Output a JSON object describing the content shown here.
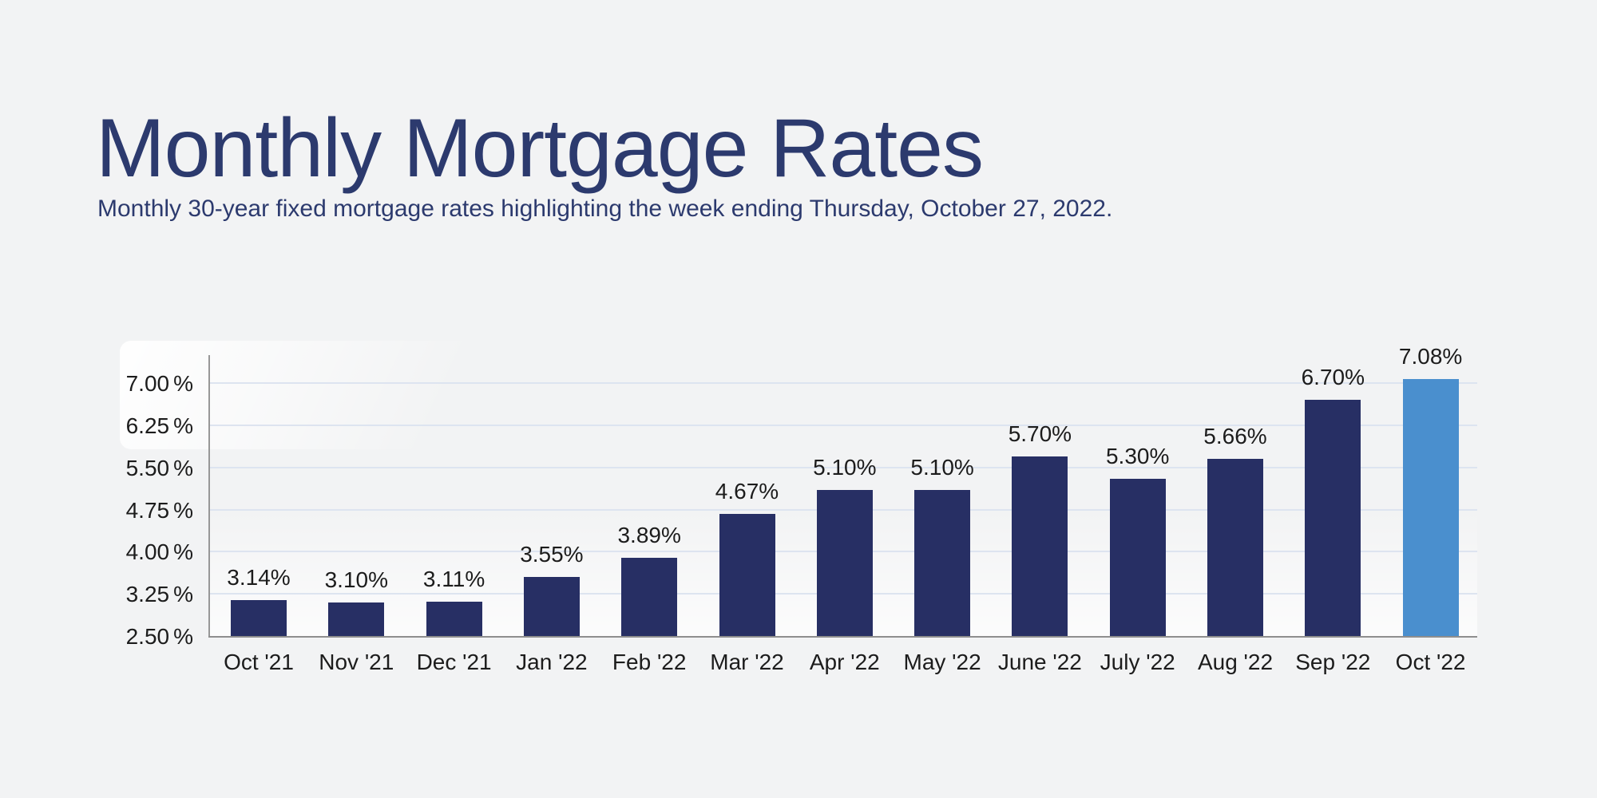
{
  "header": {
    "title": "Monthly Mortgage Rates",
    "subtitle": "Monthly 30-year fixed mortgage rates highlighting the week ending Thursday, October 27, 2022."
  },
  "chart_data": {
    "type": "bar",
    "title": "Monthly Mortgage Rates",
    "subtitle": "Monthly 30-year fixed mortgage rates highlighting the week ending Thursday, October 27, 2022.",
    "categories": [
      "Oct '21",
      "Nov '21",
      "Dec '21",
      "Jan '22",
      "Feb '22",
      "Mar '22",
      "Apr '22",
      "May '22",
      "June '22",
      "July '22",
      "Aug '22",
      "Sep '22",
      "Oct '22"
    ],
    "values": [
      3.14,
      3.1,
      3.11,
      3.55,
      3.89,
      4.67,
      5.1,
      5.1,
      5.7,
      5.3,
      5.66,
      6.7,
      7.08
    ],
    "value_labels": [
      "3.14%",
      "3.10%",
      "3.11%",
      "3.55%",
      "3.89%",
      "4.67%",
      "5.10%",
      "5.10%",
      "5.70%",
      "5.30%",
      "5.66%",
      "6.70%",
      "7.08%"
    ],
    "y_ticks": [
      2.5,
      3.25,
      4.0,
      4.75,
      5.5,
      6.25,
      7.0
    ],
    "y_tick_labels": [
      "2.50%",
      "3.25%",
      "4.00%",
      "4.75%",
      "5.50%",
      "6.25%",
      "7.00%"
    ],
    "ylim": [
      2.5,
      7.51
    ],
    "xlabel": "",
    "ylabel": "",
    "grid": true,
    "legend": false,
    "highlighted_index": 12,
    "colors": {
      "bar": "#272f64",
      "highlight": "#4a8fce",
      "gridline": "#dde4f0",
      "axis": "#8e8e8e",
      "label": "#1c1c1c",
      "title": "#2c3a6e",
      "background": "#f2f3f4"
    }
  }
}
